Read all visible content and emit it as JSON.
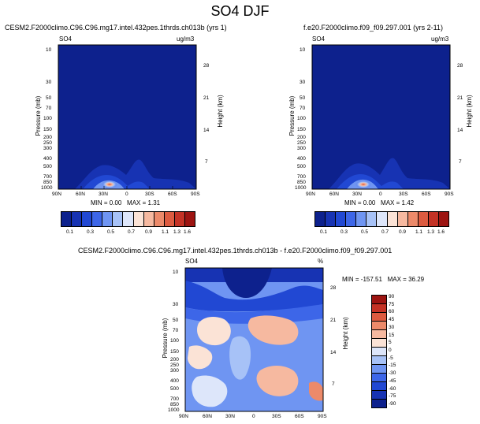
{
  "title": "SO4 DJF",
  "colors": {
    "navy": "#0b1f8c",
    "deep_blue": "#1733b3",
    "seq_scale": [
      "#0d218d",
      "#1733b3",
      "#2148d3",
      "#3d66e8",
      "#6f95f2",
      "#a7c2f7",
      "#dde6fa",
      "#fbe3d6",
      "#f6b9a0",
      "#ec8a6a",
      "#dd5b40",
      "#c43225",
      "#9d1411"
    ],
    "diff_scale": [
      "#0d218d",
      "#1733b3",
      "#2148d3",
      "#3d66e8",
      "#6f95f2",
      "#a7c2f7",
      "#dde6fa",
      "#fbe3d6",
      "#f6b9a0",
      "#ec8a6a",
      "#dd5b40",
      "#c43225",
      "#9d1411"
    ]
  },
  "chart_data": [
    {
      "type": "heatmap",
      "name": "left-panel",
      "title": "CESM2.F2000climo.C96.C96.mg17.intel.432pes.1thrds.ch013b (yrs 1)",
      "field_label": "SO4",
      "units": "ug/m3",
      "ylabel": "Pressure (mb)",
      "y2label": "Height (km)",
      "x_ticks": [
        "90N",
        "60N",
        "30N",
        "0",
        "30S",
        "60S",
        "90S"
      ],
      "y_ticks": [
        "10",
        "30",
        "50",
        "70",
        "100",
        "150",
        "200",
        "250",
        "300",
        "400",
        "500",
        "700",
        "850",
        "1000"
      ],
      "y2_ticks": [
        "28",
        "21",
        "14",
        "7"
      ],
      "min_label": "MIN =",
      "min": "0.00",
      "max_label": "MAX =",
      "max": "1.31",
      "peak_location": "30N near surface",
      "colorbar_ticks": [
        "0.1",
        "0.3",
        "0.5",
        "0.7",
        "0.9",
        "1.1",
        "1.3",
        "1.6"
      ],
      "colorbar_orientation": "horizontal"
    },
    {
      "type": "heatmap",
      "name": "right-panel",
      "title": "f.e20.F2000climo.f09_f09.297.001 (yrs 2-11)",
      "field_label": "SO4",
      "units": "ug/m3",
      "ylabel": "Pressure (mb)",
      "y2label": "Height (km)",
      "x_ticks": [
        "90N",
        "60N",
        "30N",
        "0",
        "30S",
        "60S",
        "90S"
      ],
      "y_ticks": [
        "10",
        "30",
        "50",
        "70",
        "100",
        "150",
        "200",
        "250",
        "300",
        "400",
        "500",
        "700",
        "850",
        "1000"
      ],
      "y2_ticks": [
        "28",
        "21",
        "14",
        "7"
      ],
      "min_label": "MIN =",
      "min": "0.00",
      "max_label": "MAX =",
      "max": "1.42",
      "colorbar_ticks": [
        "0.1",
        "0.3",
        "0.5",
        "0.7",
        "0.9",
        "1.1",
        "1.3",
        "1.6"
      ],
      "colorbar_orientation": "horizontal"
    },
    {
      "type": "heatmap",
      "name": "difference-panel",
      "title": "CESM2.F2000climo.C96.C96.mg17.intel.432pes.1thrds.ch013b - f.e20.F2000climo.f09_f09.297.001",
      "field_label": "SO4",
      "units": "%",
      "ylabel": "Pressure (mb)",
      "y2label": "Height (km)",
      "x_ticks": [
        "90N",
        "60N",
        "30N",
        "0",
        "30S",
        "60S",
        "90S"
      ],
      "y_ticks": [
        "10",
        "30",
        "50",
        "70",
        "100",
        "150",
        "200",
        "250",
        "300",
        "400",
        "500",
        "700",
        "850",
        "1000"
      ],
      "y2_ticks": [
        "28",
        "21",
        "14",
        "7"
      ],
      "min_label": "MIN =",
      "min": "-157.51",
      "max_label": "MAX =",
      "max": "36.29",
      "colorbar_ticks": [
        "90",
        "75",
        "60",
        "45",
        "30",
        "15",
        "5",
        "0",
        "-5",
        "-15",
        "-30",
        "-45",
        "-60",
        "-75",
        "-90"
      ],
      "colorbar_orientation": "vertical"
    }
  ]
}
